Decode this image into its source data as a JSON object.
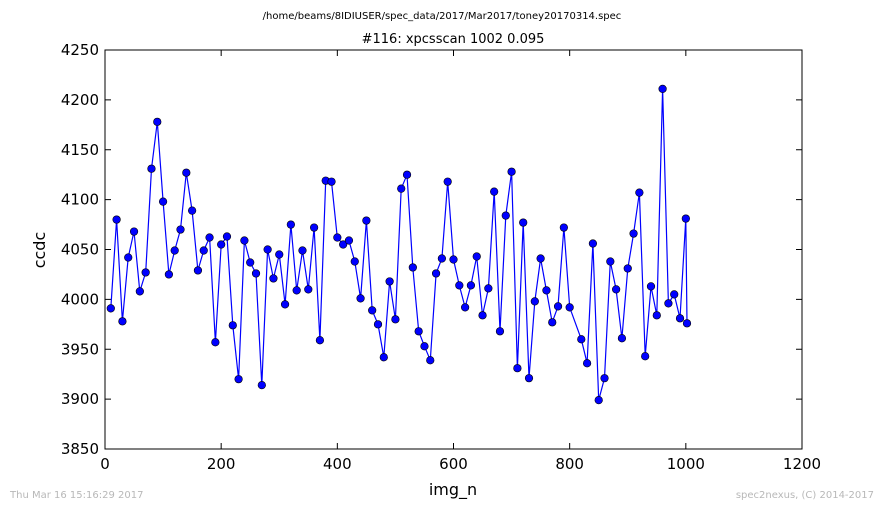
{
  "figure": {
    "suptitle": "/home/beams/8IDIUSER/spec_data/2017/Mar2017/toney20170314.spec",
    "footer_left": "Thu Mar 16 15:16:29 2017",
    "footer_right": "spec2nexus, (C) 2014-2017"
  },
  "chart_data": {
    "type": "line",
    "title": "#116: xpcsscan 1002 0.095",
    "xlabel": "img_n",
    "ylabel": "ccdc",
    "xlim": [
      0,
      1200
    ],
    "ylim": [
      3850,
      4250
    ],
    "xticks": [
      0,
      200,
      400,
      600,
      800,
      1000,
      1200
    ],
    "yticks": [
      3850,
      3900,
      3950,
      4000,
      4050,
      4100,
      4150,
      4200,
      4250
    ],
    "grid": false,
    "line_color": "#0000ff",
    "marker": "circle",
    "x": [
      10,
      20,
      30,
      40,
      50,
      60,
      70,
      80,
      90,
      100,
      110,
      120,
      130,
      140,
      150,
      160,
      170,
      180,
      190,
      200,
      210,
      220,
      230,
      240,
      250,
      260,
      270,
      280,
      290,
      300,
      310,
      320,
      330,
      340,
      350,
      360,
      370,
      380,
      390,
      400,
      410,
      420,
      430,
      440,
      450,
      460,
      470,
      480,
      490,
      500,
      510,
      520,
      530,
      540,
      550,
      560,
      570,
      580,
      590,
      600,
      610,
      620,
      630,
      640,
      650,
      660,
      670,
      680,
      690,
      700,
      710,
      720,
      730,
      740,
      750,
      760,
      770,
      780,
      790,
      800,
      820,
      830,
      840,
      850,
      860,
      870,
      880,
      890,
      900,
      910,
      920,
      930,
      940,
      950,
      960,
      970,
      980,
      990,
      1000,
      1002
    ],
    "y": [
      3991,
      4080,
      3978,
      4042,
      4068,
      4008,
      4027,
      4131,
      4178,
      4098,
      4025,
      4049,
      4070,
      4127,
      4089,
      4029,
      4049,
      4062,
      3957,
      4055,
      4063,
      3974,
      3920,
      4059,
      4037,
      4026,
      3914,
      4050,
      4021,
      4045,
      3995,
      4075,
      4009,
      4049,
      4010,
      4072,
      3959,
      4119,
      4118,
      4062,
      4055,
      4059,
      4038,
      4001,
      4079,
      3989,
      3975,
      3942,
      4018,
      3980,
      4111,
      4125,
      4032,
      3968,
      3953,
      3939,
      4026,
      4041,
      4118,
      4040,
      4014,
      3992,
      4014,
      4043,
      3984,
      4011,
      4108,
      3968,
      4084,
      4128,
      3931,
      4077,
      3921,
      3998,
      4041,
      4009,
      3977,
      3993,
      4072,
      3992,
      3960,
      3936,
      4056,
      3899,
      3921,
      4038,
      4010,
      3961,
      4031,
      4066,
      4107,
      3943,
      4013,
      3984,
      4211,
      3996,
      4005,
      3981,
      4081,
      3976
    ]
  }
}
